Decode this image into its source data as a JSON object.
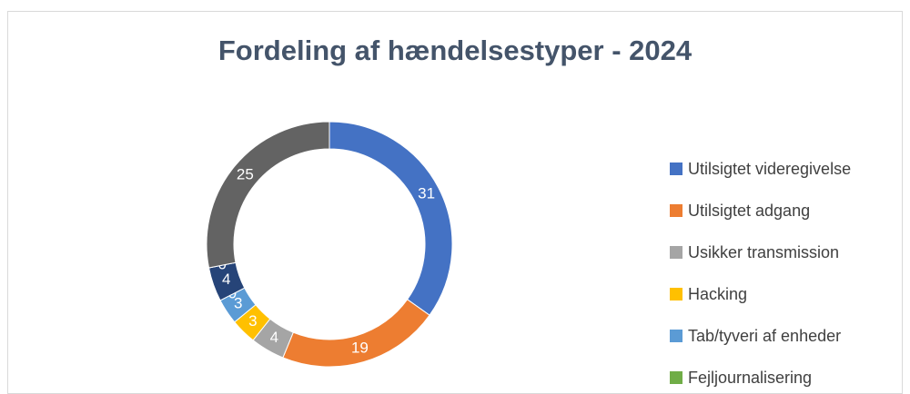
{
  "chart_data": {
    "type": "donut",
    "title": "Fordeling af hændelsestyper - 2024",
    "categories": [
      "Utilsigtet videregivelse",
      "Utilsigtet adgang",
      "Usikker transmission",
      "Hacking",
      "Tab/tyveri af enheder",
      "Fejljournalisering",
      null,
      null,
      null
    ],
    "values": [
      31,
      19,
      4,
      3,
      3,
      0,
      4,
      0,
      25
    ],
    "colors": [
      "#4472c4",
      "#ed7d31",
      "#a5a5a5",
      "#ffc000",
      "#5b9bd5",
      "#70ad47",
      "#264478",
      "#9e480e",
      "#636363"
    ],
    "legend": "right"
  }
}
